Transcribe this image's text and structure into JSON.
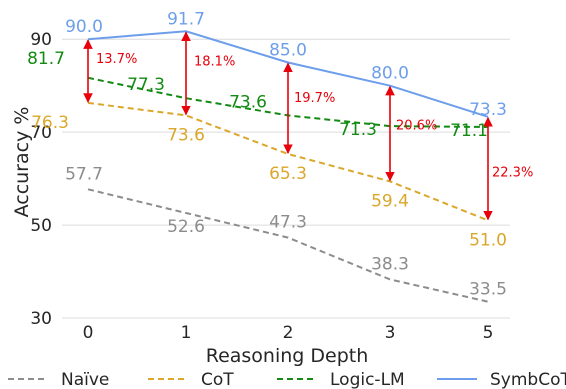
{
  "chart_data": {
    "type": "line",
    "xlabel": "Reasoning Depth",
    "ylabel": "Accuracy %",
    "categories": [
      "0",
      "1",
      "2",
      "3",
      "5"
    ],
    "y_ticks": [
      "30",
      "50",
      "70",
      "90"
    ],
    "ylim": [
      30,
      95
    ],
    "grid": "horizontal",
    "legend_position": "bottom",
    "series": [
      {
        "name": "Naïve",
        "color": "#8c8c8c",
        "style": "dashed",
        "values": [
          57.7,
          52.6,
          47.3,
          38.3,
          33.5
        ],
        "labels": [
          "57.7",
          "52.6",
          "47.3",
          "38.3",
          "33.5"
        ]
      },
      {
        "name": "CoT",
        "color": "#dba72a",
        "style": "dashed",
        "values": [
          76.3,
          73.6,
          65.3,
          59.4,
          51.0
        ],
        "labels": [
          "76.3",
          "73.6",
          "65.3",
          "59.4",
          "51.0"
        ]
      },
      {
        "name": "Logic-LM",
        "color": "#138a13",
        "style": "dashed",
        "values": [
          81.7,
          77.3,
          73.6,
          71.3,
          71.1
        ],
        "labels": [
          "81.7",
          "77.3",
          "73.6",
          "71.3",
          "71.1"
        ]
      },
      {
        "name": "SymbCoT",
        "color": "#6d9eeb",
        "style": "solid",
        "values": [
          90.0,
          91.7,
          85.0,
          80.0,
          73.3
        ],
        "labels": [
          "90.0",
          "91.7",
          "85.0",
          "80.0",
          "73.3"
        ]
      }
    ],
    "annotations": {
      "color": "#e8000b",
      "from_series": "SymbCoT",
      "to_series": "CoT",
      "labels": [
        "13.7%",
        "18.1%",
        "19.7%",
        "20.6%",
        "22.3%"
      ]
    }
  }
}
